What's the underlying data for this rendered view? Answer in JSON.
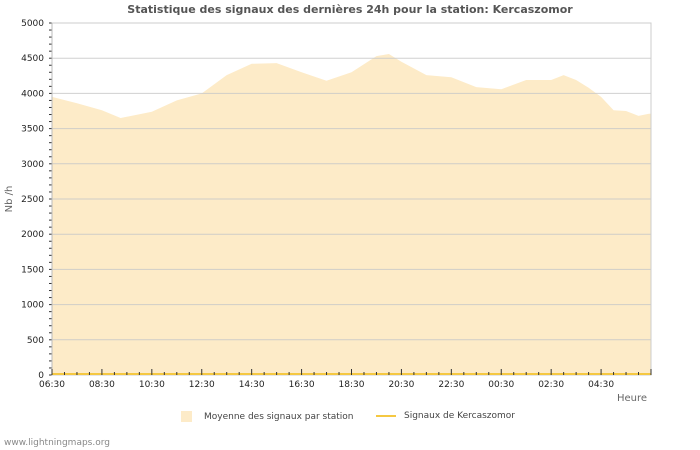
{
  "chart_data": {
    "type": "area",
    "title": "Statistique des signaux des dernières 24h pour la station: Kercaszomor",
    "xlabel": "Heure",
    "ylabel": "Nb /h",
    "ylim": [
      0,
      5000
    ],
    "yticks": [
      "0",
      "500",
      "1000",
      "1500",
      "2000",
      "2500",
      "3000",
      "3500",
      "4000",
      "4500",
      "5000"
    ],
    "xticks": [
      "06:30",
      "08:30",
      "10:30",
      "12:30",
      "14:30",
      "16:30",
      "18:30",
      "20:30",
      "22:30",
      "00:30",
      "02:30",
      "04:30"
    ],
    "grid": true,
    "legend_position": "bottom",
    "x": [
      "06:30",
      "07:30",
      "08:30",
      "09:15",
      "10:30",
      "11:30",
      "12:30",
      "13:30",
      "14:30",
      "15:30",
      "16:30",
      "17:30",
      "18:30",
      "19:30",
      "20:00",
      "20:30",
      "21:30",
      "22:30",
      "23:30",
      "00:30",
      "01:30",
      "02:30",
      "03:00",
      "03:30",
      "04:00",
      "04:30",
      "05:00",
      "05:30",
      "06:00",
      "06:25"
    ],
    "series": [
      {
        "name": "Moyenne des signaux par station",
        "type": "area",
        "color": "#fdebc8",
        "values": [
          3950,
          3860,
          3760,
          3650,
          3740,
          3900,
          4000,
          4260,
          4420,
          4430,
          4300,
          4180,
          4300,
          4530,
          4560,
          4450,
          4260,
          4230,
          4090,
          4060,
          4190,
          4190,
          4260,
          4190,
          4080,
          3950,
          3760,
          3750,
          3680,
          3710
        ]
      },
      {
        "name": "Signaux de Kercaszomor",
        "type": "line",
        "color": "#f5c842",
        "values": [
          0,
          0,
          0,
          0,
          0,
          0,
          0,
          0,
          0,
          0,
          0,
          0,
          0,
          0,
          0,
          0,
          0,
          0,
          0,
          0,
          0,
          0,
          0,
          0,
          0,
          0,
          0,
          0,
          0,
          0
        ]
      }
    ]
  },
  "legend": {
    "area_label": "Moyenne des signaux par station",
    "line_label": "Signaux de Kercaszomor"
  },
  "footer": "www.lightningmaps.org"
}
